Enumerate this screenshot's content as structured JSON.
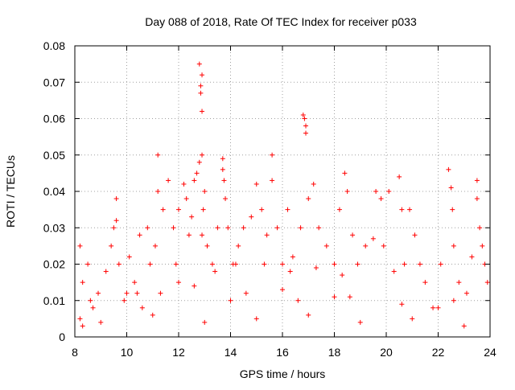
{
  "chart_data": {
    "type": "scatter",
    "title": "Day 088 of 2018, Rate Of TEC Index for receiver p033",
    "xlabel": "GPS time / hours",
    "ylabel": "ROTI / TECUs",
    "xlim": [
      8,
      24
    ],
    "ylim": [
      0,
      0.08
    ],
    "grid": true,
    "marker": "+",
    "x_ticks": [
      8,
      10,
      12,
      14,
      16,
      18,
      20,
      22,
      24
    ],
    "y_ticks": [
      0,
      0.01,
      0.02,
      0.03,
      0.04,
      0.05,
      0.06,
      0.07,
      0.08
    ],
    "x_tick_labels": [
      "8",
      "10",
      "12",
      "14",
      "16",
      "18",
      "20",
      "22",
      "24"
    ],
    "y_tick_labels": [
      "0",
      "0.01",
      "0.02",
      "0.03",
      "0.04",
      "0.05",
      "0.06",
      "0.07",
      "0.08"
    ],
    "colors": {
      "marker": "#ff0000",
      "axis": "#000000",
      "grid": "#a0a0a0",
      "background": "#ffffff"
    },
    "series": [
      {
        "name": "ROTI",
        "x": [
          8.2,
          8.2,
          8.3,
          8.3,
          8.5,
          8.7,
          8.9,
          9.2,
          9.4,
          9.5,
          9.6,
          9.6,
          9.7,
          9.9,
          10.1,
          10.3,
          10.5,
          10.6,
          10.8,
          10.9,
          11.1,
          11.2,
          11.2,
          11.3,
          11.4,
          11.6,
          11.8,
          11.9,
          12.0,
          12.2,
          12.3,
          12.4,
          12.5,
          12.6,
          12.7,
          12.8,
          12.8,
          12.85,
          12.85,
          12.9,
          12.9,
          12.9,
          12.9,
          12.95,
          13.0,
          13.1,
          13.3,
          13.5,
          13.7,
          13.7,
          13.75,
          13.8,
          13.9,
          14.1,
          14.3,
          14.5,
          14.8,
          15.0,
          15.2,
          15.4,
          15.6,
          15.6,
          15.8,
          16.0,
          16.2,
          16.4,
          16.7,
          16.8,
          16.85,
          16.9,
          16.9,
          17.0,
          17.2,
          17.4,
          17.7,
          18.0,
          18.2,
          18.4,
          18.5,
          18.7,
          18.9,
          19.2,
          19.5,
          19.6,
          19.8,
          19.9,
          20.1,
          20.3,
          20.5,
          20.6,
          20.7,
          20.9,
          21.1,
          21.3,
          21.5,
          21.8,
          22.1,
          22.4,
          22.5,
          22.55,
          22.6,
          22.8,
          23.1,
          23.3,
          23.5,
          23.5,
          23.6,
          23.7,
          23.8,
          23.9,
          9.0,
          11.0,
          13.0,
          15.0,
          17.0,
          19.0,
          21.0,
          23.0,
          10.0,
          12.0,
          14.0,
          16.0,
          18.0,
          22.0,
          8.6,
          10.4,
          12.6,
          14.6,
          16.6,
          18.6,
          20.6,
          22.6,
          13.4,
          14.2,
          15.3,
          16.3,
          17.3,
          18.3
        ],
        "y": [
          0.025,
          0.005,
          0.015,
          0.003,
          0.02,
          0.008,
          0.012,
          0.018,
          0.025,
          0.03,
          0.032,
          0.038,
          0.02,
          0.01,
          0.022,
          0.015,
          0.028,
          0.008,
          0.03,
          0.02,
          0.025,
          0.05,
          0.04,
          0.012,
          0.035,
          0.043,
          0.03,
          0.02,
          0.035,
          0.042,
          0.038,
          0.028,
          0.033,
          0.043,
          0.045,
          0.048,
          0.075,
          0.069,
          0.067,
          0.072,
          0.062,
          0.05,
          0.028,
          0.035,
          0.04,
          0.025,
          0.02,
          0.03,
          0.046,
          0.049,
          0.043,
          0.038,
          0.03,
          0.02,
          0.025,
          0.03,
          0.033,
          0.042,
          0.035,
          0.028,
          0.05,
          0.043,
          0.03,
          0.02,
          0.035,
          0.022,
          0.03,
          0.061,
          0.06,
          0.058,
          0.056,
          0.038,
          0.042,
          0.03,
          0.025,
          0.02,
          0.035,
          0.045,
          0.04,
          0.028,
          0.02,
          0.025,
          0.027,
          0.04,
          0.038,
          0.025,
          0.04,
          0.018,
          0.044,
          0.035,
          0.02,
          0.035,
          0.028,
          0.02,
          0.015,
          0.008,
          0.02,
          0.046,
          0.041,
          0.035,
          0.025,
          0.015,
          0.012,
          0.022,
          0.043,
          0.038,
          0.03,
          0.025,
          0.02,
          0.015,
          0.004,
          0.006,
          0.004,
          0.005,
          0.006,
          0.004,
          0.005,
          0.003,
          0.012,
          0.015,
          0.01,
          0.013,
          0.011,
          0.008,
          0.01,
          0.012,
          0.014,
          0.012,
          0.01,
          0.011,
          0.009,
          0.01,
          0.018,
          0.02,
          0.02,
          0.018,
          0.019,
          0.017
        ]
      }
    ]
  }
}
